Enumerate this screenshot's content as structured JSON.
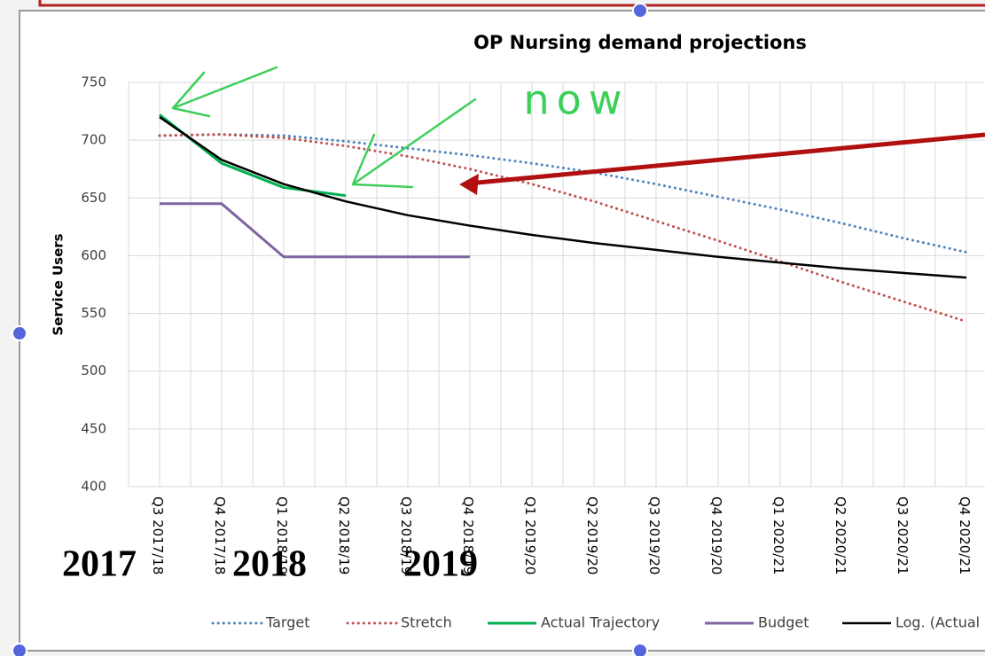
{
  "chart_data": {
    "type": "line",
    "title": "OP Nursing demand projections",
    "y_label": "Service Users",
    "categories": [
      "Q3 2017/18",
      "Q4 2017/18",
      "Q1 2018/19",
      "Q2 2018/19",
      "Q3 2018/19",
      "Q4 2018/19",
      "Q1 2019/20",
      "Q2 2019/20",
      "Q3  2019/20",
      "Q4 2019/20",
      "Q1 2020/21",
      "Q2 2020/21",
      "Q3 2020/21",
      "Q4 2020/21"
    ],
    "series": [
      {
        "name": "Target",
        "color": "#4f81bd",
        "style": "dotted",
        "values": [
          704,
          705,
          704,
          699,
          693,
          687,
          680,
          672,
          662,
          651,
          640,
          628,
          615,
          603
        ]
      },
      {
        "name": "Stretch",
        "color": "#c0504d",
        "style": "dotted",
        "values": [
          704,
          705,
          702,
          695,
          686,
          675,
          662,
          647,
          630,
          613,
          595,
          577,
          560,
          543
        ]
      },
      {
        "name": "Actual Trajectory",
        "color": "#00b050",
        "style": "solid",
        "values": [
          722,
          680,
          659,
          652,
          null,
          null,
          null,
          null,
          null,
          null,
          null,
          null,
          null,
          null
        ]
      },
      {
        "name": "Budget",
        "color": "#8064a2",
        "style": "solid",
        "values": [
          645,
          645,
          599,
          599,
          599,
          599,
          null,
          null,
          null,
          null,
          null,
          null,
          null,
          null
        ]
      },
      {
        "name": "Log. (Actual",
        "color": "#000000",
        "style": "solid",
        "values": [
          720,
          683,
          662,
          647,
          635,
          626,
          618,
          611,
          605,
          599,
          594,
          589,
          585,
          581
        ]
      }
    ],
    "ylim": [
      400,
      750
    ],
    "yticks": [
      400,
      450,
      500,
      550,
      600,
      650,
      700,
      750
    ],
    "grid": true,
    "legend": "bottom",
    "annotations": [
      "2017",
      "2018",
      "2019",
      "now"
    ]
  }
}
